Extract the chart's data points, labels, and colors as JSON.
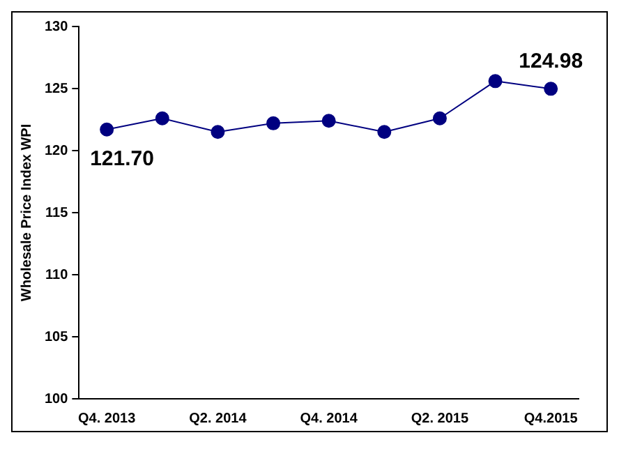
{
  "chart_data": {
    "type": "line",
    "ylabel": "Wholesale Price Index WPI",
    "categories": [
      "Q4. 2013",
      null,
      "Q2. 2014",
      null,
      "Q4. 2014",
      null,
      "Q2. 2015",
      null,
      "Q4.2015"
    ],
    "series": [
      {
        "color": "#000080",
        "values": [
          121.7,
          122.6,
          121.5,
          122.2,
          122.4,
          121.5,
          122.6,
          125.6,
          124.98
        ],
        "value_labels": [
          "121.70",
          null,
          null,
          null,
          null,
          null,
          null,
          null,
          "124.98"
        ]
      }
    ],
    "ylim": [
      100,
      130
    ],
    "yticks": [
      100,
      105,
      110,
      115,
      120,
      125,
      130
    ],
    "grid": false,
    "legend": false,
    "marker": "circle",
    "line_style": "solid"
  }
}
